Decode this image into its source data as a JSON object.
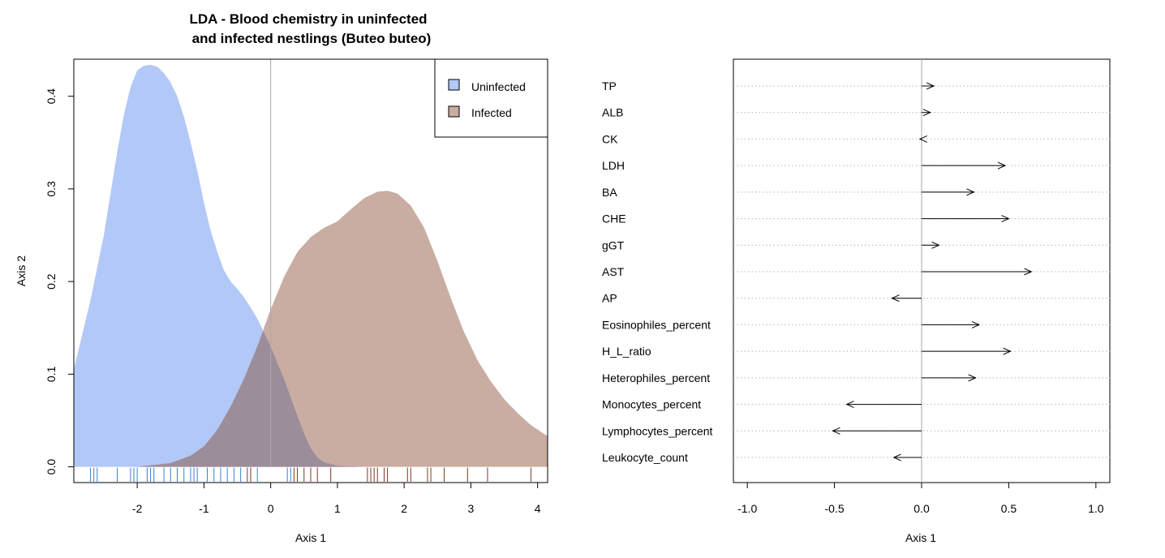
{
  "chart_data": [
    {
      "type": "area",
      "title_line1": "LDA - Blood chemistry in uninfected",
      "title_line2": "and infected nestlings (Buteo buteo)",
      "xlabel": "Axis 1",
      "ylabel": "Axis 2",
      "xlim": [
        -2.95,
        4.15
      ],
      "ylim": [
        -0.017,
        0.44
      ],
      "x_ticks": [
        -2,
        -1,
        0,
        1,
        2,
        3,
        4
      ],
      "x_tick_labels": [
        "-2",
        "-1",
        "0",
        "1",
        "2",
        "3",
        "4"
      ],
      "y_ticks": [
        0.0,
        0.1,
        0.2,
        0.3,
        0.4
      ],
      "y_tick_labels": [
        "0.0",
        "0.1",
        "0.2",
        "0.3",
        "0.4"
      ],
      "legend_position": "top-right",
      "legend": [
        "Uninfected",
        "Infected"
      ],
      "vertical_reference_line_x": 0,
      "series": [
        {
          "name": "Uninfected",
          "color": "#b2c8f7",
          "rug_color": "#3a7fd6",
          "x": [
            -2.95,
            -2.7,
            -2.5,
            -2.3,
            -2.2,
            -2.1,
            -2.0,
            -1.9,
            -1.8,
            -1.7,
            -1.6,
            -1.5,
            -1.4,
            -1.3,
            -1.2,
            -1.1,
            -1.0,
            -0.9,
            -0.8,
            -0.7,
            -0.6,
            -0.5,
            -0.4,
            -0.3,
            -0.2,
            -0.1,
            0.0,
            0.1,
            0.2,
            0.3,
            0.4,
            0.5,
            0.6,
            0.7,
            0.8,
            1.0,
            1.3,
            1.6,
            2.0,
            2.5,
            3.0,
            3.5,
            4.15
          ],
          "values": [
            0.105,
            0.18,
            0.25,
            0.34,
            0.38,
            0.41,
            0.428,
            0.433,
            0.434,
            0.432,
            0.425,
            0.415,
            0.4,
            0.378,
            0.35,
            0.32,
            0.285,
            0.255,
            0.232,
            0.212,
            0.2,
            0.192,
            0.183,
            0.172,
            0.16,
            0.145,
            0.13,
            0.112,
            0.095,
            0.075,
            0.055,
            0.036,
            0.02,
            0.01,
            0.005,
            0.001,
            0.0,
            0.0,
            0.0,
            0.0,
            0.0,
            0.0,
            0.0
          ],
          "rug": [
            -2.7,
            -2.65,
            -2.6,
            -2.3,
            -2.1,
            -2.05,
            -2.0,
            -1.85,
            -1.8,
            -1.75,
            -1.6,
            -1.5,
            -1.4,
            -1.3,
            -1.2,
            -1.15,
            -1.1,
            -0.95,
            -0.85,
            -0.75,
            -0.65,
            -0.55,
            -0.45,
            -0.3,
            -0.2,
            0.25,
            0.3
          ]
        },
        {
          "name": "Infected",
          "color": "#c9ada2",
          "rug_color": "#7a3b22",
          "x": [
            -2.95,
            -2.0,
            -1.5,
            -1.2,
            -1.0,
            -0.8,
            -0.6,
            -0.4,
            -0.2,
            0.0,
            0.2,
            0.4,
            0.6,
            0.8,
            1.0,
            1.2,
            1.4,
            1.6,
            1.75,
            1.9,
            2.1,
            2.3,
            2.5,
            2.7,
            2.9,
            3.1,
            3.3,
            3.5,
            3.7,
            3.9,
            4.15
          ],
          "values": [
            0.0,
            0.0,
            0.004,
            0.012,
            0.022,
            0.04,
            0.065,
            0.095,
            0.13,
            0.17,
            0.205,
            0.232,
            0.248,
            0.258,
            0.265,
            0.278,
            0.29,
            0.297,
            0.298,
            0.295,
            0.282,
            0.258,
            0.222,
            0.182,
            0.145,
            0.115,
            0.092,
            0.073,
            0.058,
            0.045,
            0.033
          ],
          "rug": [
            -0.35,
            -0.3,
            0.35,
            0.4,
            0.5,
            0.6,
            0.7,
            0.9,
            1.45,
            1.5,
            1.55,
            1.6,
            1.7,
            1.75,
            2.05,
            2.1,
            2.35,
            2.4,
            2.6,
            2.95,
            3.25,
            3.9
          ]
        }
      ]
    },
    {
      "type": "arrow",
      "xlabel": "Axis 1",
      "xlim": [
        -1.08,
        1.08
      ],
      "x_ticks": [
        -1.0,
        -0.5,
        0.0,
        0.5,
        1.0
      ],
      "x_tick_labels": [
        "-1.0",
        "-0.5",
        "0.0",
        "0.5",
        "1.0"
      ],
      "vertical_reference_line_x": 0,
      "variables": [
        "TP",
        "ALB",
        "CK",
        "LDH",
        "BA",
        "CHE",
        "gGT",
        "AST",
        "AP",
        "Eosinophiles_percent",
        "H_L_ratio",
        "Heterophiles_percent",
        "Monocytes_percent",
        "Lymphocytes_percent",
        "Leukocyte_count"
      ],
      "values": [
        0.07,
        0.05,
        -0.01,
        0.48,
        0.3,
        0.5,
        0.1,
        0.63,
        -0.17,
        0.33,
        0.51,
        0.31,
        -0.43,
        -0.51,
        -0.16
      ]
    }
  ]
}
